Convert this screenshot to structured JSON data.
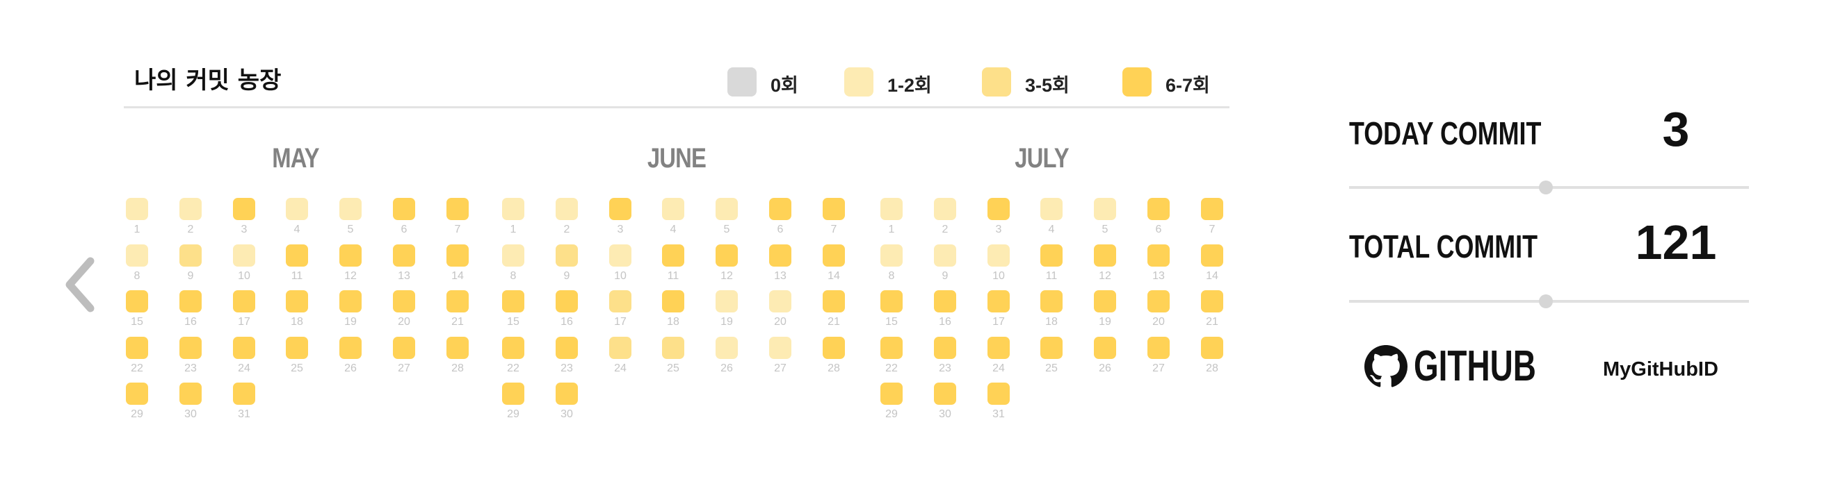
{
  "header": {
    "title": "나의 커밋 농장"
  },
  "legend": [
    {
      "label": "0회",
      "color": "#d9d9d9"
    },
    {
      "label": "1-2회",
      "color": "#fdebb3"
    },
    {
      "label": "3-5회",
      "color": "#fde08a"
    },
    {
      "label": "6-7회",
      "color": "#ffd256"
    }
  ],
  "nav": {
    "prev_icon": "chevron-left-icon"
  },
  "months": [
    {
      "name": "MAY",
      "days": 31,
      "levels": [
        1,
        1,
        3,
        1,
        1,
        3,
        3,
        1,
        2,
        1,
        3,
        3,
        3,
        3,
        3,
        3,
        3,
        3,
        3,
        3,
        3,
        3,
        3,
        3,
        3,
        3,
        3,
        3,
        3,
        3,
        3
      ]
    },
    {
      "name": "JUNE",
      "days": 30,
      "levels": [
        1,
        1,
        3,
        1,
        1,
        3,
        3,
        1,
        2,
        1,
        3,
        3,
        3,
        3,
        3,
        3,
        2,
        3,
        1,
        1,
        3,
        3,
        3,
        2,
        2,
        1,
        1,
        3,
        3,
        3
      ]
    },
    {
      "name": "JULY",
      "days": 31,
      "levels": [
        1,
        1,
        3,
        1,
        1,
        3,
        3,
        1,
        1,
        1,
        3,
        3,
        3,
        3,
        3,
        3,
        3,
        3,
        3,
        3,
        3,
        3,
        3,
        3,
        3,
        3,
        3,
        3,
        3,
        3,
        3
      ]
    }
  ],
  "stats": {
    "today": {
      "label": "TODAY COMMIT",
      "value": "3"
    },
    "total": {
      "label": "TOTAL COMMIT",
      "value": "121"
    }
  },
  "github": {
    "logo_icon": "github-octocat-icon",
    "label": "GITHUB",
    "user_id": "MyGitHubID"
  }
}
